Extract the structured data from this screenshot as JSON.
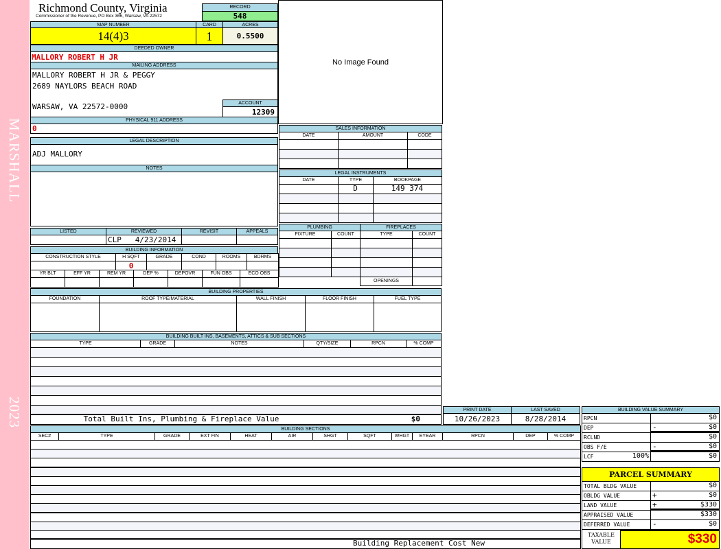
{
  "sidebar": {
    "district": "MARSHALL",
    "year": "2023"
  },
  "header": {
    "title": "Richmond County, Virginia",
    "subtitle": "Commissioner of the Revenue, PO Box 366, Warsaw, VA 22572",
    "record_label": "RECORD",
    "record": "548"
  },
  "parcel": {
    "map_label": "MAP NUMBER",
    "map": "14(4)3",
    "card_label": "CARD",
    "card": "1",
    "acres_label": "ACRES",
    "acres": "0.5500"
  },
  "owner": {
    "label": "DEEDED OWNER",
    "name": "MALLORY ROBERT H JR"
  },
  "mailing": {
    "label": "MAILING ADDRESS",
    "line1": "MALLORY ROBERT H JR & PEGGY",
    "line2": "2689 NAYLORS BEACH ROAD",
    "line3": "WARSAW, VA 22572-0000",
    "account_label": "ACCOUNT",
    "account": "12309"
  },
  "physical": {
    "label": "PHYSICAL 911 ADDRESS",
    "value": "0"
  },
  "image": {
    "text": "No Image Found"
  },
  "legal": {
    "label": "LEGAL DESCRIPTION",
    "value": "ADJ MALLORY"
  },
  "notes": {
    "label": "NOTES"
  },
  "review": {
    "listed": "LISTED",
    "reviewed": "REVIEWED",
    "revisit": "REVISIT",
    "appeals": "APPEALS",
    "reviewed_value": "CLP   4/23/2014"
  },
  "building_info": {
    "label": "BUILDING INFORMATION",
    "cols1": [
      "CONSTRUCTION STYLE",
      "H SQFT",
      "GRADE",
      "COND",
      "ROOMS",
      "BDRMS"
    ],
    "hsqft": "0",
    "cols2": [
      "YR BLT",
      "EFF YR",
      "REM YR",
      "DEP %",
      "DEPOVR",
      "FUN OBS",
      "ECO OBS"
    ]
  },
  "sales": {
    "label": "SALES INFORMATION",
    "cols": [
      "DATE",
      "AMOUNT",
      "CODE"
    ]
  },
  "instruments": {
    "label": "LEGAL INSTRUMENTS",
    "cols": [
      "DATE",
      "TYPE",
      "BOOKPAGE"
    ],
    "type": "D",
    "bookpage": "149 374"
  },
  "plumbing": {
    "label": "PLUMBING",
    "cols": [
      "FIXTURE",
      "COUNT"
    ]
  },
  "fireplaces": {
    "label": "FIREPLACES",
    "cols": [
      "TYPE",
      "COUNT"
    ],
    "openings": "OPENINGS"
  },
  "properties": {
    "label": "BUILDING PROPERTIES",
    "cols": [
      "FOUNDATION",
      "ROOF TYPE/MATERIAL",
      "WALL FINISH",
      "FLOOR FINISH",
      "FUEL TYPE"
    ]
  },
  "builtins": {
    "label": "BUILDING BUILT INS, BASEMENTS, ATTICS & SUB SECTIONS",
    "cols": [
      "TYPE",
      "GRADE",
      "NOTES",
      "QTY/SIZE",
      "RPCN",
      "% COMP"
    ],
    "total_label": "Total Built Ins, Plumbing & Fireplace Value",
    "total": "$0"
  },
  "dates": {
    "print_label": "PRINT DATE",
    "print": "10/26/2023",
    "saved_label": "LAST SAVED",
    "saved": "8/28/2014"
  },
  "sections": {
    "label": "BUILDING SECTIONS",
    "cols": [
      "SEC#",
      "TYPE",
      "GRADE",
      "EXT FIN",
      "HEAT",
      "AIR",
      "SHGT",
      "SQFT",
      "WHGT",
      "EYEAR",
      "RPCN",
      "DEP",
      "% COMP"
    ],
    "footer": "Building Replacement Cost New"
  },
  "bvs": {
    "label": "BUILDING VALUE SUMMARY",
    "rows": [
      {
        "label": "RPCN",
        "sign": "",
        "value": "$0"
      },
      {
        "label": "DEP",
        "sign": "-",
        "value": "$0"
      },
      {
        "label": "RCLND",
        "sign": "",
        "value": "$0"
      },
      {
        "label": "OBS F/E",
        "sign": "-",
        "value": "$0"
      },
      {
        "label": "LCF",
        "pct": "100%",
        "sign": "",
        "value": "$0"
      }
    ]
  },
  "parcel_summary": {
    "label": "PARCEL SUMMARY",
    "rows": [
      {
        "label": "TOTAL BLDG VALUE",
        "sign": "",
        "value": "$0"
      },
      {
        "label": "OBLDG VALUE",
        "sign": "+",
        "value": "$0"
      },
      {
        "label": "LAND VALUE",
        "sign": "+",
        "value": "$330"
      },
      {
        "label": "APPRAISED VALUE",
        "sign": "",
        "value": "$330"
      },
      {
        "label": "DEFERRED VALUE",
        "sign": "-",
        "value": "$0"
      }
    ],
    "taxable_label": "TAXABLE VALUE",
    "taxable": "$330"
  },
  "colors": {
    "header": "#add8e6",
    "sidebar": "#ffc0cb",
    "highlight": "#ffff00",
    "record": "#90ee90",
    "owner": "#e00000"
  }
}
